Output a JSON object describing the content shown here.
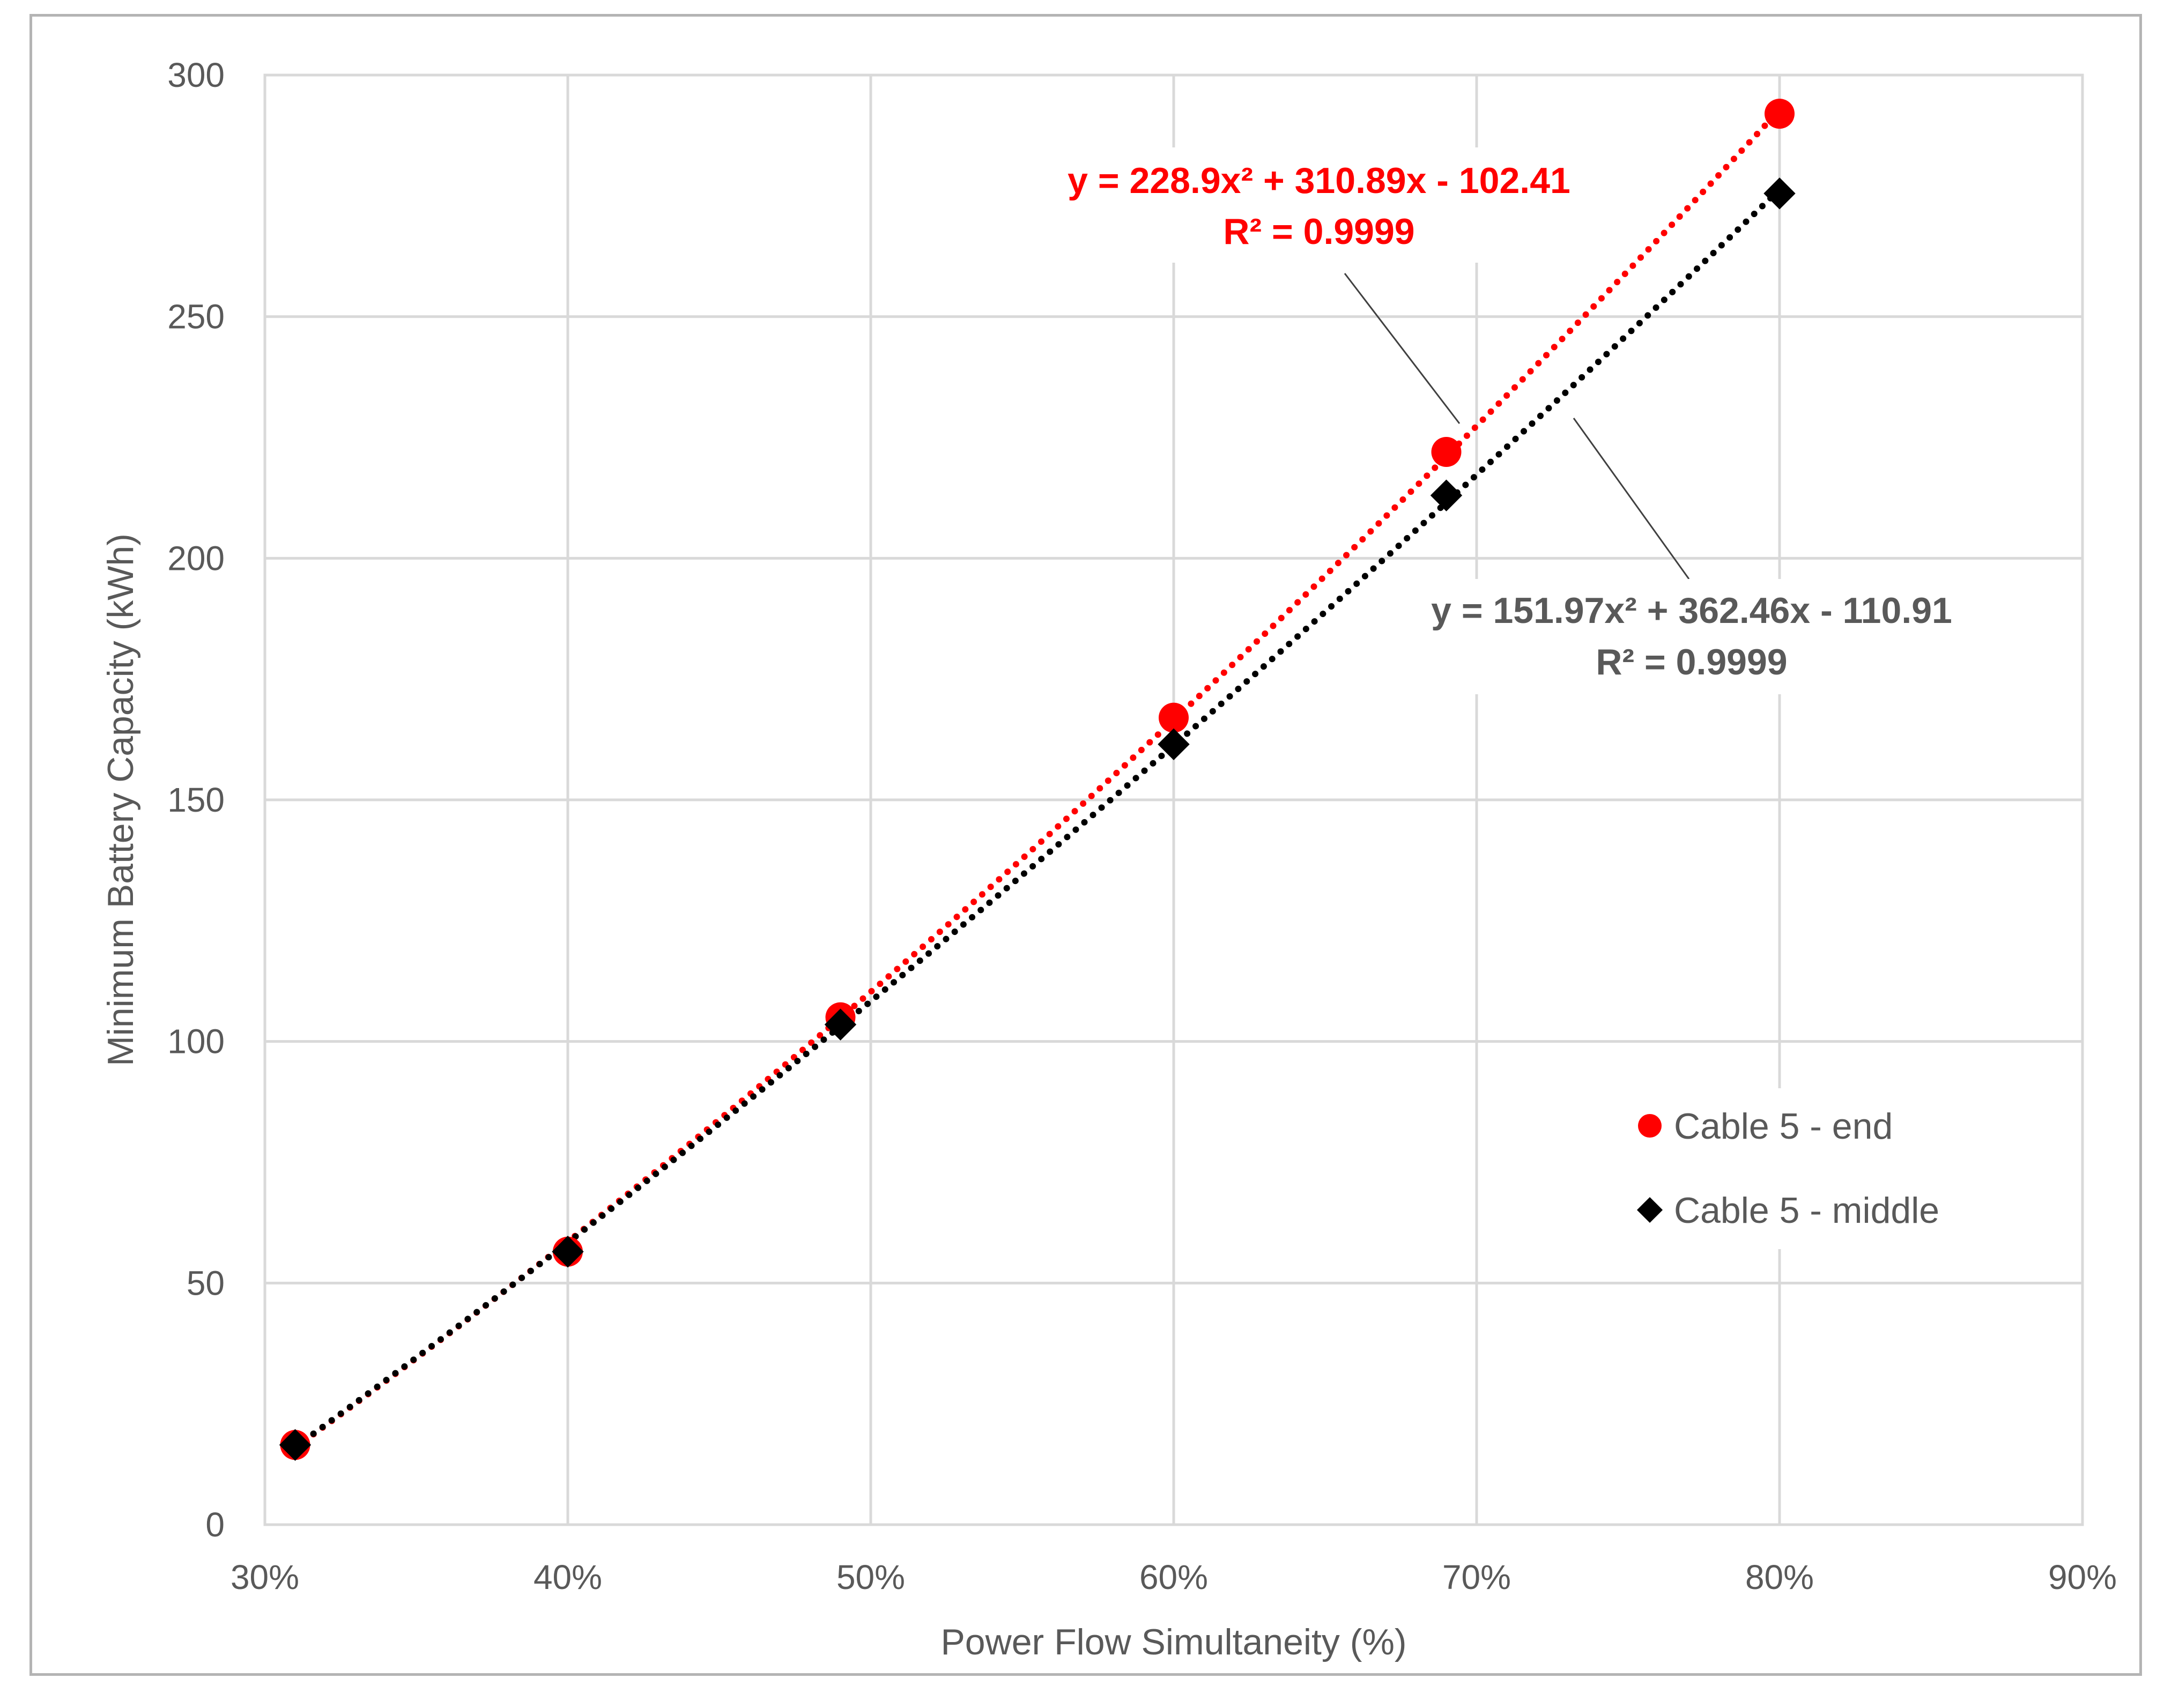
{
  "chart_data": {
    "type": "scatter",
    "xlabel": "Power Flow Simultaneity (%)",
    "ylabel": "Minimum Battery Capacity (kWh)",
    "xlim": [
      0.3,
      0.9
    ],
    "ylim": [
      0,
      300
    ],
    "x_ticks": [
      0.3,
      0.4,
      0.5,
      0.6,
      0.7,
      0.8,
      0.9
    ],
    "x_tick_labels": [
      "30%",
      "40%",
      "50%",
      "60%",
      "70%",
      "80%",
      "90%"
    ],
    "y_ticks": [
      0,
      50,
      100,
      150,
      200,
      250,
      300
    ],
    "y_tick_labels": [
      "0",
      "50",
      "100",
      "150",
      "200",
      "250",
      "300"
    ],
    "grid": true,
    "legend_position": "right",
    "series": [
      {
        "name": "Cable 5 - end",
        "color": "#ff0000",
        "marker": "circle",
        "x": [
          0.31,
          0.4,
          0.49,
          0.6,
          0.69,
          0.8
        ],
        "y": [
          16.5,
          56.5,
          105,
          167,
          222,
          292
        ],
        "trendline": {
          "type": "polynomial",
          "coefficients": [
            228.9,
            310.89,
            -102.41
          ],
          "style": "dotted"
        },
        "equation": "y = 228.9x² + 310.89x - 102.41",
        "r_squared": "R² = 0.9999"
      },
      {
        "name": "Cable 5 - middle",
        "color": "#000000",
        "marker": "diamond",
        "x": [
          0.31,
          0.4,
          0.49,
          0.6,
          0.69,
          0.8
        ],
        "y": [
          16.5,
          56.5,
          103.5,
          161.5,
          213,
          275.5
        ],
        "trendline": {
          "type": "polynomial",
          "coefficients": [
            151.97,
            362.46,
            -110.91
          ],
          "style": "dotted"
        },
        "equation": "y = 151.97x² + 362.46x - 110.91",
        "r_squared": "R² = 0.9999"
      }
    ]
  }
}
